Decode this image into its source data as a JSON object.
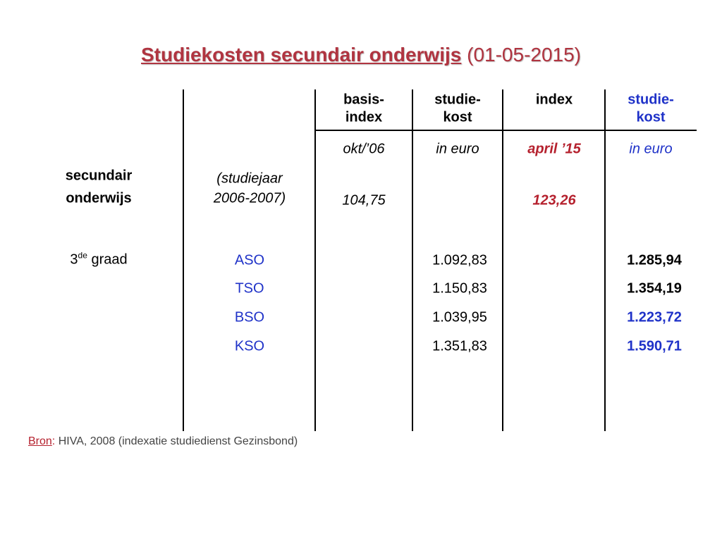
{
  "title": {
    "main": "Studiekosten secundair onderwijs",
    "date": "(01-05-2015)"
  },
  "table": {
    "headers": [
      [
        "basis-",
        "index"
      ],
      [
        "studie-",
        "kost"
      ],
      [
        "index"
      ],
      [
        "studie-",
        "kost"
      ]
    ],
    "units": [
      "okt/’06",
      "in euro",
      "april ’15",
      "in euro"
    ],
    "level": [
      "secundair",
      "onderwijs"
    ],
    "school_year": [
      "(studiejaar",
      "2006-2007)"
    ],
    "index_2006": "104,75",
    "index_2015": "123,26",
    "grade": {
      "number": "3",
      "suffix": "de",
      "word": "graad"
    },
    "rows": [
      {
        "label": "ASO",
        "cost_2006": "1.092,83",
        "cost_2015": "1.285,94"
      },
      {
        "label": "TSO",
        "cost_2006": "1.150,83",
        "cost_2015": "1.354,19"
      },
      {
        "label": "BSO",
        "cost_2006": "1.039,95",
        "cost_2015": "1.223,72"
      },
      {
        "label": "KSO",
        "cost_2006": "1.351,83",
        "cost_2015": "1.590,71"
      }
    ]
  },
  "source": {
    "label": "Bron",
    "colon": ":",
    "text": "HIVA, 2008 (indexatie studiedienst Gezinsbond)"
  }
}
